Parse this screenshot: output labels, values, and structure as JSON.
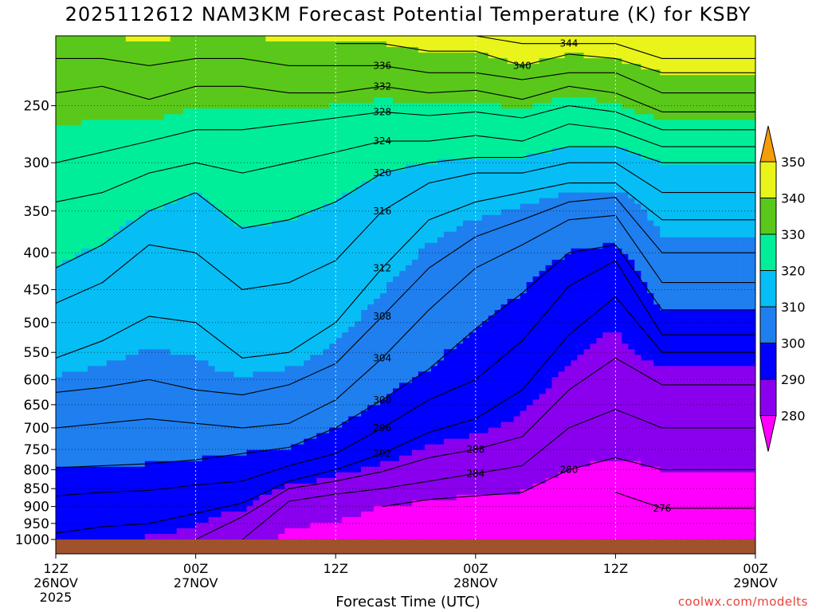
{
  "title": "2025112612 NAM3KM Forecast Potential Temperature (K) for KSBY",
  "credit": "coolwx.com/modelts",
  "chart_data": {
    "type": "heatmap",
    "title": "2025112612 NAM3KM Forecast Potential Temperature (K) for KSBY",
    "xlabel": "Forecast Time (UTC)",
    "ylabel": "",
    "x_range_hours": [
      0,
      60
    ],
    "y_range_hpa": [
      1000,
      200
    ],
    "yticks": [
      250,
      300,
      350,
      400,
      450,
      500,
      550,
      600,
      650,
      700,
      750,
      800,
      850,
      900,
      950,
      1000
    ],
    "xticks": [
      {
        "hour": 0,
        "lines": [
          "12Z",
          "26NOV",
          "2025"
        ]
      },
      {
        "hour": 12,
        "lines": [
          "00Z",
          "27NOV"
        ]
      },
      {
        "hour": 24,
        "lines": [
          "12Z"
        ]
      },
      {
        "hour": 36,
        "lines": [
          "00Z",
          "28NOV"
        ]
      },
      {
        "hour": 48,
        "lines": [
          "12Z"
        ]
      },
      {
        "hour": 60,
        "lines": [
          "00Z",
          "29NOV"
        ]
      }
    ],
    "grid": true,
    "colorbar": {
      "position": "right",
      "levels": [
        280,
        290,
        300,
        310,
        320,
        330,
        340,
        350
      ],
      "colors": [
        "#ff00ff",
        "#8a00ee",
        "#0000ff",
        "#1f7fef",
        "#06bef5",
        "#00ee9a",
        "#5ac81a",
        "#e8f41a",
        "#f59d08"
      ]
    },
    "isentropes": [
      {
        "theta": 276,
        "p_hpa": [
          null,
          null,
          null,
          null,
          null,
          null,
          null,
          null,
          null,
          null,
          null,
          null,
          860,
          905
        ]
      },
      {
        "theta": 280,
        "p_hpa": [
          null,
          null,
          null,
          null,
          null,
          null,
          null,
          900,
          880,
          870,
          860,
          800,
          770,
          800
        ]
      },
      {
        "theta": 284,
        "p_hpa": [
          null,
          null,
          null,
          null,
          1000,
          885,
          865,
          850,
          830,
          810,
          790,
          700,
          660,
          700
        ]
      },
      {
        "theta": 288,
        "p_hpa": [
          null,
          null,
          null,
          1000,
          930,
          850,
          830,
          805,
          770,
          750,
          720,
          620,
          560,
          610
        ]
      },
      {
        "theta": 292,
        "p_hpa": [
          980,
          960,
          950,
          920,
          890,
          830,
          800,
          760,
          710,
          680,
          620,
          520,
          460,
          550
        ]
      },
      {
        "theta": 296,
        "p_hpa": [
          870,
          860,
          855,
          840,
          830,
          790,
          760,
          700,
          640,
          600,
          530,
          445,
          410,
          520
        ]
      },
      {
        "theta": 300,
        "p_hpa": [
          795,
          790,
          785,
          775,
          760,
          745,
          700,
          640,
          580,
          510,
          455,
          400,
          390,
          480
        ]
      },
      {
        "theta": 304,
        "p_hpa": [
          700,
          690,
          680,
          690,
          700,
          690,
          640,
          560,
          480,
          420,
          390,
          360,
          355,
          440
        ]
      },
      {
        "theta": 308,
        "p_hpa": [
          625,
          615,
          600,
          620,
          630,
          610,
          570,
          490,
          420,
          380,
          360,
          340,
          335,
          400
        ]
      },
      {
        "theta": 312,
        "p_hpa": [
          560,
          530,
          490,
          500,
          560,
          550,
          500,
          420,
          360,
          340,
          330,
          320,
          320,
          360
        ]
      },
      {
        "theta": 316,
        "p_hpa": [
          470,
          440,
          390,
          400,
          450,
          440,
          410,
          350,
          320,
          310,
          310,
          300,
          300,
          330
        ]
      },
      {
        "theta": 320,
        "p_hpa": [
          420,
          390,
          350,
          330,
          370,
          360,
          340,
          310,
          300,
          295,
          295,
          285,
          285,
          300
        ]
      },
      {
        "theta": 324,
        "p_hpa": [
          340,
          330,
          310,
          300,
          310,
          300,
          290,
          280,
          280,
          275,
          280,
          265,
          270,
          285
        ]
      },
      {
        "theta": 328,
        "p_hpa": [
          300,
          290,
          280,
          270,
          270,
          265,
          260,
          255,
          258,
          255,
          260,
          250,
          255,
          270
        ]
      },
      {
        "theta": 332,
        "p_hpa": [
          240,
          235,
          245,
          235,
          235,
          240,
          240,
          235,
          240,
          238,
          245,
          235,
          240,
          255
        ]
      },
      {
        "theta": 336,
        "p_hpa": [
          215,
          215,
          220,
          215,
          215,
          220,
          220,
          220,
          225,
          225,
          230,
          225,
          225,
          240
        ]
      },
      {
        "theta": 340,
        "p_hpa": [
          null,
          null,
          null,
          null,
          null,
          null,
          205,
          205,
          210,
          210,
          220,
          212,
          215,
          225
        ]
      },
      {
        "theta": 344,
        "p_hpa": [
          null,
          null,
          null,
          null,
          null,
          null,
          null,
          null,
          200,
          200,
          205,
          205,
          205,
          215
        ]
      }
    ],
    "isentrope_hours": [
      0,
      4,
      8,
      12,
      16,
      20,
      24,
      28,
      32,
      36,
      40,
      44,
      48,
      52
    ]
  }
}
